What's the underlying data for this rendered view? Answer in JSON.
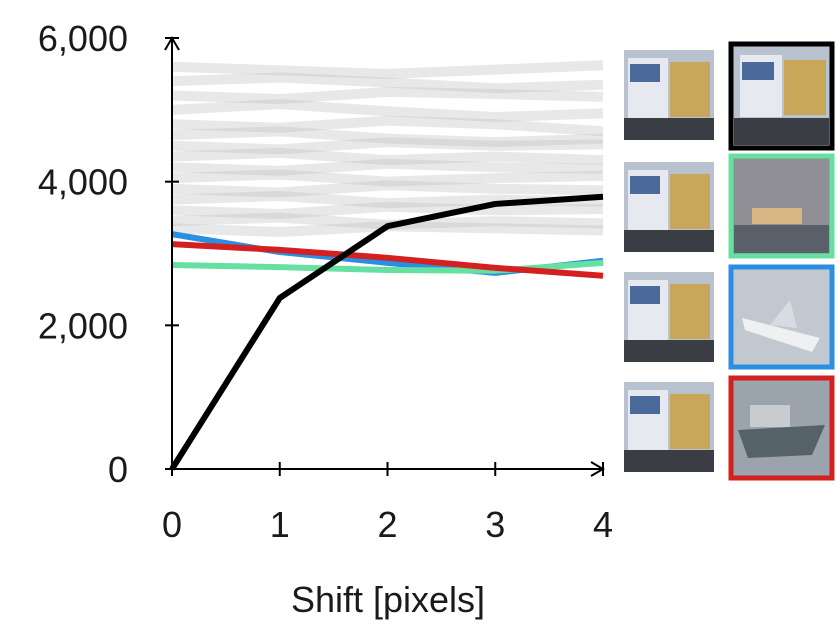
{
  "chart_data": {
    "type": "line",
    "x_label": "Shift [pixels]",
    "x": [
      0,
      1,
      2,
      3,
      4
    ],
    "xlim": [
      0,
      4
    ],
    "xticks": [
      0,
      1,
      2,
      3,
      4
    ],
    "ylim": [
      0,
      6000
    ],
    "yticks": [
      0,
      {
        "value": 2000,
        "label": "2,000"
      },
      {
        "value": 4000,
        "label": "4,000"
      },
      {
        "value": 6000,
        "label": "6,000"
      }
    ],
    "series": [
      {
        "color": "#bdbdbd",
        "values": [
          5600,
          5550,
          5500,
          5560,
          5620
        ]
      },
      {
        "color": "#bdbdbd",
        "values": [
          5400,
          5450,
          5380,
          5300,
          5350
        ]
      },
      {
        "color": "#bdbdbd",
        "values": [
          5200,
          5150,
          5250,
          5220,
          5180
        ]
      },
      {
        "color": "#bdbdbd",
        "values": [
          5000,
          5080,
          4980,
          4900,
          4950
        ]
      },
      {
        "color": "#bdbdbd",
        "values": [
          4800,
          4750,
          4850,
          4800,
          4700
        ]
      },
      {
        "color": "#bdbdbd",
        "values": [
          4650,
          4700,
          4600,
          4550,
          4600
        ]
      },
      {
        "color": "#bdbdbd",
        "values": [
          4500,
          4450,
          4550,
          4500,
          4520
        ]
      },
      {
        "color": "#bdbdbd",
        "values": [
          4350,
          4400,
          4300,
          4350,
          4300
        ]
      },
      {
        "color": "#bdbdbd",
        "values": [
          4200,
          4150,
          4250,
          4200,
          4180
        ]
      },
      {
        "color": "#bdbdbd",
        "values": [
          4050,
          4100,
          4000,
          4050,
          4080
        ]
      },
      {
        "color": "#bdbdbd",
        "values": [
          3900,
          3850,
          3950,
          3900,
          3880
        ]
      },
      {
        "color": "#bdbdbd",
        "values": [
          3750,
          3800,
          3700,
          3750,
          3720
        ]
      },
      {
        "color": "#bdbdbd",
        "values": [
          3600,
          3550,
          3650,
          3600,
          3620
        ]
      },
      {
        "color": "#bdbdbd",
        "values": [
          3450,
          3500,
          3400,
          3450,
          3420
        ]
      },
      {
        "color": "#bdbdbd",
        "values": [
          3350,
          3300,
          3380,
          3350,
          3320
        ]
      },
      {
        "color": "#2a8fe0",
        "values": [
          3270,
          3020,
          2870,
          2730,
          2900
        ]
      },
      {
        "color": "#66e0a0",
        "values": [
          2840,
          2810,
          2770,
          2760,
          2870
        ]
      },
      {
        "color": "#d42020",
        "values": [
          3130,
          3050,
          2940,
          2800,
          2690
        ]
      },
      {
        "color": "#000000",
        "values": [
          0,
          2380,
          3380,
          3690,
          3790
        ]
      }
    ]
  }
}
